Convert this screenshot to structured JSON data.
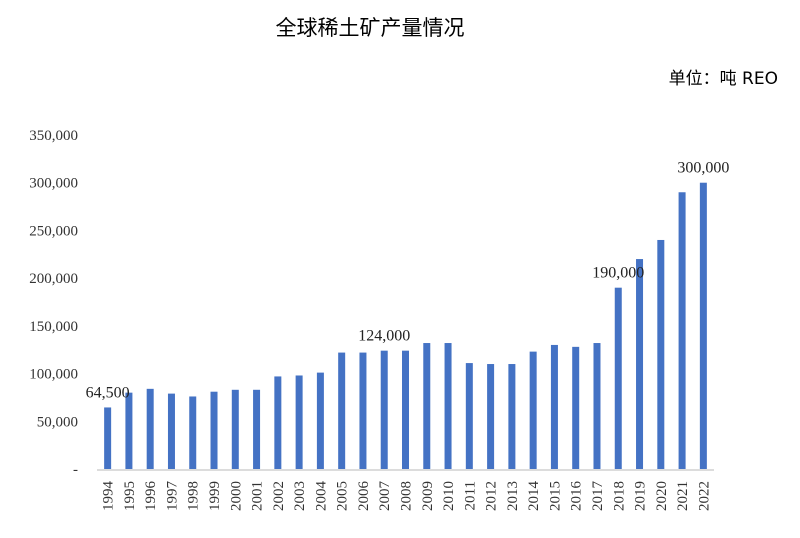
{
  "chart_data": {
    "type": "bar",
    "title": "全球稀土矿产量情况",
    "unit_label": "单位：吨 REO",
    "xlabel": "",
    "ylabel": "",
    "ylim": [
      0,
      350000
    ],
    "yticks": [
      0,
      50000,
      100000,
      150000,
      200000,
      250000,
      300000,
      350000
    ],
    "ytick_labels": [
      "-",
      "50,000",
      "100,000",
      "150,000",
      "200,000",
      "250,000",
      "300,000",
      "350,000"
    ],
    "grid": false,
    "bar_color": "#4472C4",
    "categories": [
      "1994",
      "1995",
      "1996",
      "1997",
      "1998",
      "1999",
      "2000",
      "2001",
      "2002",
      "2003",
      "2004",
      "2005",
      "2006",
      "2007",
      "2008",
      "2009",
      "2010",
      "2011",
      "2012",
      "2013",
      "2014",
      "2015",
      "2016",
      "2017",
      "2018",
      "2019",
      "2020",
      "2021",
      "2022"
    ],
    "values": [
      64500,
      80000,
      84000,
      79000,
      76000,
      81000,
      83000,
      83000,
      97000,
      98000,
      101000,
      122000,
      122000,
      124000,
      124000,
      132000,
      132000,
      111000,
      110000,
      110000,
      123000,
      130000,
      128000,
      132000,
      190000,
      220000,
      240000,
      290000,
      300000
    ],
    "data_labels": [
      {
        "category": "1994",
        "text": "64,500"
      },
      {
        "category": "2007",
        "text": "124,000"
      },
      {
        "category": "2018",
        "text": "190,000"
      },
      {
        "category": "2022",
        "text": "300,000"
      }
    ]
  }
}
